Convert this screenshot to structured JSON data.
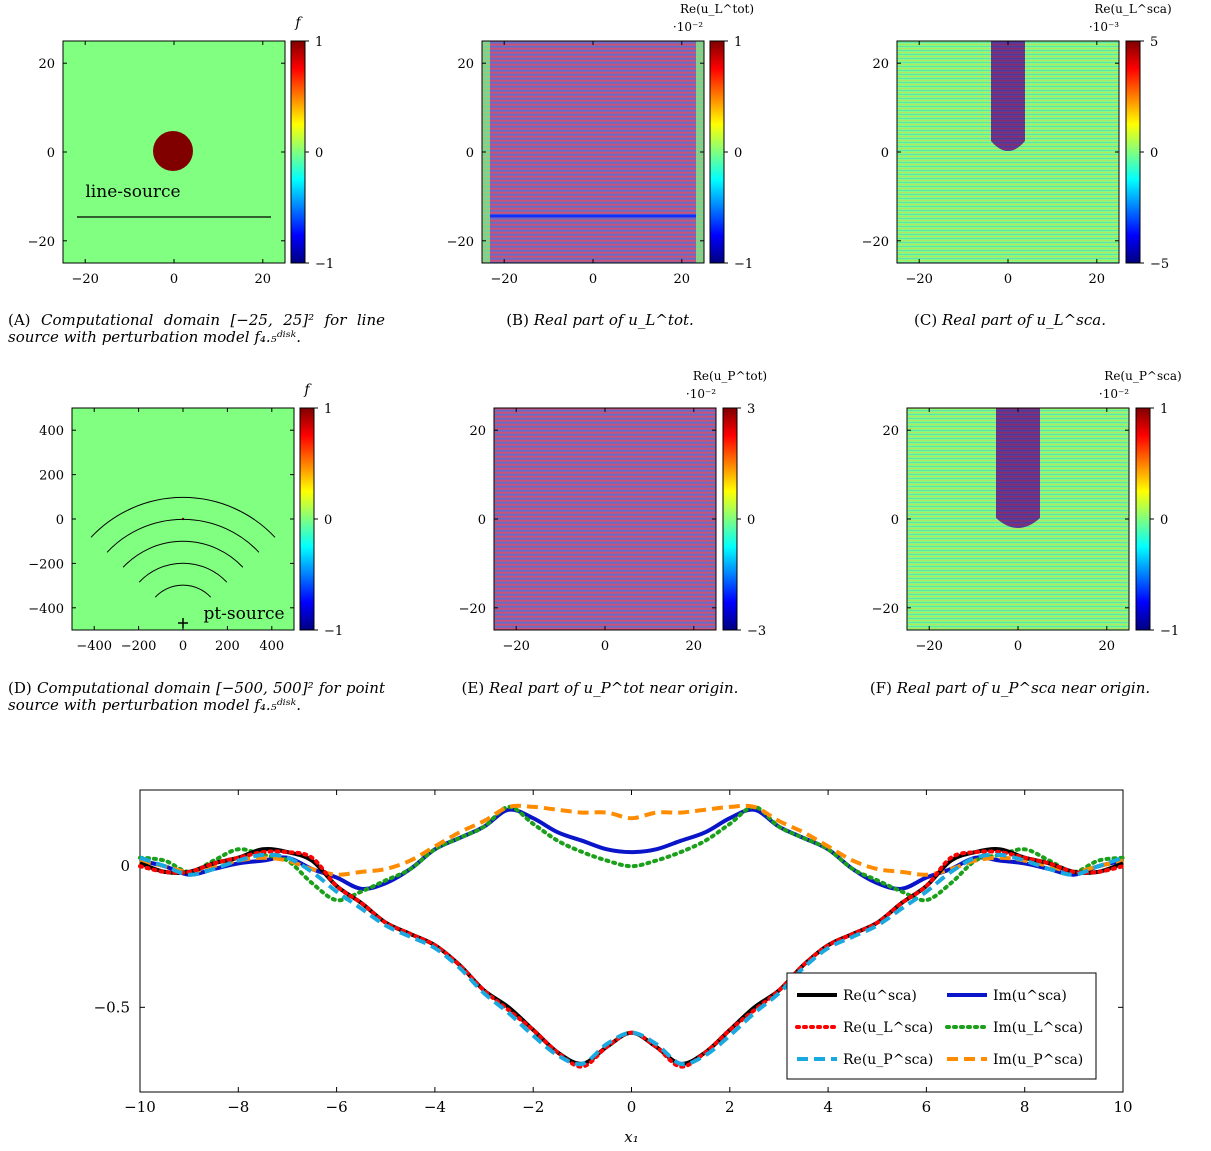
{
  "colors": {
    "field_green": "#80ff80",
    "disk_red": "#800000",
    "jet": [
      "#00007f",
      "#0000ff",
      "#007fff",
      "#00ffff",
      "#7fff7f",
      "#ffff00",
      "#ff7f00",
      "#ff0000",
      "#7f0000"
    ],
    "re_exact": "#000000",
    "im_exact": "#0a14c8",
    "re_line": "#ff0000",
    "im_line": "#1aa01a",
    "re_point": "#1aa8e0",
    "im_point": "#ff8c00"
  },
  "panels": [
    {
      "id": "a",
      "xticks": [
        "−20",
        "0",
        "20"
      ],
      "yticks": [
        "20",
        "0",
        "−20"
      ],
      "cbar_ticks": [
        "1",
        "0",
        "−1"
      ],
      "cbar_title": "f",
      "annotation": "line-source",
      "caption_tag": "(A)",
      "caption_text": "Computational domain [−25, 25]² for line source with perturbation model f₄.₅ᵈⁱˢᵏ."
    },
    {
      "id": "b",
      "xticks": [
        "−20",
        "0",
        "20"
      ],
      "yticks": [
        "20",
        "0",
        "−20"
      ],
      "cbar_ticks": [
        "1",
        "0",
        "−1"
      ],
      "cbar_title": "Re(u_L^tot)",
      "cbar_scale": "·10⁻²",
      "caption_tag": "(B)",
      "caption_text": "Real part of u_L^tot."
    },
    {
      "id": "c",
      "xticks": [
        "−20",
        "0",
        "20"
      ],
      "yticks": [
        "20",
        "0",
        "−20"
      ],
      "cbar_ticks": [
        "5",
        "0",
        "−5"
      ],
      "cbar_title": "Re(u_L^sca)",
      "cbar_scale": "·10⁻³",
      "caption_tag": "(C)",
      "caption_text": "Real part of u_L^sca."
    },
    {
      "id": "d",
      "xticks": [
        "−400",
        "−200",
        "0",
        "200",
        "400"
      ],
      "yticks": [
        "400",
        "200",
        "0",
        "−200",
        "−400"
      ],
      "cbar_ticks": [
        "1",
        "0",
        "−1"
      ],
      "cbar_title": "f",
      "annotation": "pt-source",
      "caption_tag": "(D)",
      "caption_text": "Computational domain [−500, 500]² for point source with perturbation model f₄.₅ᵈⁱˢᵏ."
    },
    {
      "id": "e",
      "xticks": [
        "−20",
        "0",
        "20"
      ],
      "yticks": [
        "20",
        "0",
        "−20"
      ],
      "cbar_ticks": [
        "3",
        "0",
        "−3"
      ],
      "cbar_title": "Re(u_P^tot)",
      "cbar_scale": "·10⁻²",
      "caption_tag": "(E)",
      "caption_text": "Real part of u_P^tot near origin."
    },
    {
      "id": "f",
      "xticks": [
        "−20",
        "0",
        "20"
      ],
      "yticks": [
        "20",
        "0",
        "−20"
      ],
      "cbar_ticks": [
        "1",
        "0",
        "−1"
      ],
      "cbar_title": "Re(u_P^sca)",
      "cbar_scale": "·10⁻²",
      "caption_tag": "(F)",
      "caption_text": "Real part of u_P^sca near origin."
    }
  ],
  "chart_data": {
    "type": "line",
    "xlabel": "x₁",
    "ylabel": "",
    "xlim": [
      -10,
      10
    ],
    "ylim": [
      -0.8,
      0.27
    ],
    "xticks": [
      -10,
      -8,
      -6,
      -4,
      -2,
      0,
      2,
      4,
      6,
      8,
      10
    ],
    "yticks": [
      0,
      -0.5
    ],
    "ytick_labels": [
      "0",
      "−0.5"
    ],
    "legend_position": "bottom-right",
    "series": [
      {
        "name": "Re(u^sca)",
        "style": "solid",
        "color_key": "re_exact",
        "x": [
          -10,
          -9.5,
          -9,
          -8.5,
          -8,
          -7.5,
          -7,
          -6.5,
          -6,
          -5.5,
          -5,
          -4.5,
          -4,
          -3.5,
          -3,
          -2.5,
          -2,
          -1.5,
          -1,
          -0.5,
          0,
          0.5,
          1,
          1.5,
          2,
          2.5,
          3,
          3.5,
          4,
          4.5,
          5,
          5.5,
          6,
          6.5,
          7,
          7.5,
          8,
          8.5,
          9,
          9.5,
          10
        ],
        "y": [
          0.01,
          -0.02,
          -0.02,
          0.01,
          0.03,
          0.06,
          0.05,
          0.02,
          -0.07,
          -0.13,
          -0.2,
          -0.24,
          -0.28,
          -0.35,
          -0.44,
          -0.5,
          -0.58,
          -0.66,
          -0.7,
          -0.64,
          -0.59,
          -0.64,
          -0.7,
          -0.66,
          -0.58,
          -0.5,
          -0.44,
          -0.35,
          -0.28,
          -0.24,
          -0.2,
          -0.13,
          -0.07,
          0.02,
          0.05,
          0.06,
          0.03,
          0.01,
          -0.02,
          -0.02,
          0.01
        ]
      },
      {
        "name": "Im(u^sca)",
        "style": "solid",
        "color_key": "im_exact",
        "x": [
          -10,
          -9.5,
          -9,
          -8.5,
          -8,
          -7.5,
          -7,
          -6.5,
          -6,
          -5.5,
          -5,
          -4.5,
          -4,
          -3.5,
          -3,
          -2.5,
          -2,
          -1.5,
          -1,
          -0.5,
          0,
          0.5,
          1,
          1.5,
          2,
          2.5,
          3,
          3.5,
          4,
          4.5,
          5,
          5.5,
          6,
          6.5,
          7,
          7.5,
          8,
          8.5,
          9,
          9.5,
          10
        ],
        "y": [
          0.02,
          0.0,
          -0.03,
          -0.01,
          0.01,
          0.02,
          0.03,
          -0.01,
          -0.04,
          -0.08,
          -0.06,
          -0.01,
          0.06,
          0.1,
          0.14,
          0.2,
          0.17,
          0.12,
          0.09,
          0.06,
          0.05,
          0.06,
          0.09,
          0.12,
          0.17,
          0.2,
          0.14,
          0.1,
          0.06,
          -0.01,
          -0.06,
          -0.08,
          -0.04,
          -0.01,
          0.03,
          0.02,
          0.01,
          -0.01,
          -0.03,
          0.0,
          0.02
        ]
      },
      {
        "name": "Re(u_L^sca)",
        "style": "dotted",
        "color_key": "re_line",
        "x": [
          -10,
          -9.5,
          -9,
          -8.5,
          -8,
          -7.5,
          -7,
          -6.5,
          -6,
          -5.5,
          -5,
          -4.5,
          -4,
          -3.5,
          -3,
          -2.5,
          -2,
          -1.5,
          -1,
          -0.5,
          0,
          0.5,
          1,
          1.5,
          2,
          2.5,
          3,
          3.5,
          4,
          4.5,
          5,
          5.5,
          6,
          6.5,
          7,
          7.5,
          8,
          8.5,
          9,
          9.5,
          10
        ],
        "y": [
          0.0,
          -0.02,
          -0.02,
          0.01,
          0.03,
          0.05,
          0.05,
          0.03,
          -0.07,
          -0.13,
          -0.2,
          -0.24,
          -0.28,
          -0.35,
          -0.44,
          -0.51,
          -0.58,
          -0.66,
          -0.71,
          -0.64,
          -0.59,
          -0.64,
          -0.71,
          -0.66,
          -0.58,
          -0.51,
          -0.44,
          -0.35,
          -0.28,
          -0.24,
          -0.2,
          -0.13,
          -0.07,
          0.03,
          0.05,
          0.05,
          0.03,
          0.01,
          -0.02,
          -0.02,
          0.0
        ]
      },
      {
        "name": "Im(u_L^sca)",
        "style": "dotted",
        "color_key": "im_line",
        "x": [
          -10,
          -9.5,
          -9,
          -8.5,
          -8,
          -7.5,
          -7,
          -6.5,
          -6,
          -5.5,
          -5,
          -4.5,
          -4,
          -3.5,
          -3,
          -2.5,
          -2,
          -1.5,
          -1,
          -0.5,
          0,
          0.5,
          1,
          1.5,
          2,
          2.5,
          3,
          3.5,
          4,
          4.5,
          5,
          5.5,
          6,
          6.5,
          7,
          7.5,
          8,
          8.5,
          9,
          9.5,
          10
        ],
        "y": [
          0.03,
          0.02,
          -0.02,
          0.02,
          0.06,
          0.04,
          0.02,
          -0.06,
          -0.12,
          -0.09,
          -0.05,
          -0.01,
          0.06,
          0.1,
          0.14,
          0.21,
          0.15,
          0.09,
          0.05,
          0.02,
          0.0,
          0.02,
          0.05,
          0.09,
          0.15,
          0.21,
          0.14,
          0.1,
          0.06,
          -0.01,
          -0.05,
          -0.09,
          -0.12,
          -0.06,
          0.02,
          0.04,
          0.06,
          0.02,
          -0.02,
          0.02,
          0.03
        ]
      },
      {
        "name": "Re(u_P^sca)",
        "style": "dashed",
        "color_key": "re_point",
        "x": [
          -10,
          -9.5,
          -9,
          -8.5,
          -8,
          -7.5,
          -7,
          -6.5,
          -6,
          -5.5,
          -5,
          -4.5,
          -4,
          -3.5,
          -3,
          -2.5,
          -2,
          -1.5,
          -1,
          -0.5,
          0,
          0.5,
          1,
          1.5,
          2,
          2.5,
          3,
          3.5,
          4,
          4.5,
          5,
          5.5,
          6,
          6.5,
          7,
          7.5,
          8,
          8.5,
          9,
          9.5,
          10
        ],
        "y": [
          0.03,
          0.0,
          -0.03,
          -0.01,
          0.02,
          0.04,
          0.03,
          -0.02,
          -0.09,
          -0.15,
          -0.21,
          -0.25,
          -0.29,
          -0.36,
          -0.45,
          -0.52,
          -0.6,
          -0.67,
          -0.7,
          -0.63,
          -0.59,
          -0.63,
          -0.7,
          -0.67,
          -0.6,
          -0.52,
          -0.45,
          -0.36,
          -0.29,
          -0.25,
          -0.21,
          -0.15,
          -0.09,
          -0.02,
          0.03,
          0.04,
          0.02,
          -0.01,
          -0.03,
          0.0,
          0.03
        ]
      },
      {
        "name": "Im(u_P^sca)",
        "style": "dashed",
        "color_key": "im_point",
        "x": [
          -10,
          -9.5,
          -9,
          -8.5,
          -8,
          -7.5,
          -7,
          -6.5,
          -6,
          -5.5,
          -5,
          -4.5,
          -4,
          -3.5,
          -3,
          -2.5,
          -2,
          -1.5,
          -1,
          -0.5,
          0,
          0.5,
          1,
          1.5,
          2,
          2.5,
          3,
          3.5,
          4,
          4.5,
          5,
          5.5,
          6,
          6.5,
          7,
          7.5,
          8,
          8.5,
          9,
          9.5,
          10
        ],
        "y": [
          0.02,
          0.0,
          -0.02,
          0.0,
          0.02,
          0.03,
          0.02,
          -0.01,
          -0.03,
          -0.02,
          -0.01,
          0.02,
          0.07,
          0.12,
          0.16,
          0.21,
          0.21,
          0.2,
          0.19,
          0.19,
          0.17,
          0.19,
          0.19,
          0.2,
          0.21,
          0.21,
          0.16,
          0.12,
          0.07,
          0.02,
          -0.01,
          -0.02,
          -0.03,
          -0.01,
          0.02,
          0.03,
          0.02,
          0.0,
          -0.02,
          0.0,
          0.02
        ]
      }
    ]
  }
}
